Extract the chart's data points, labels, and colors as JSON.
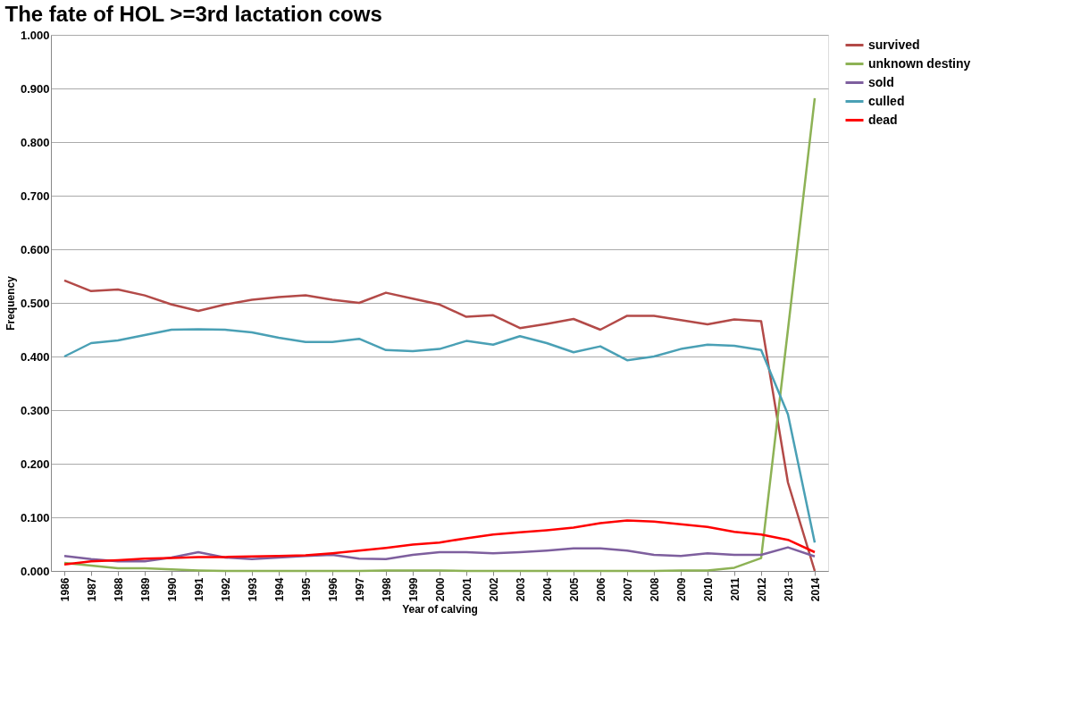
{
  "chart_data": {
    "type": "line",
    "title": "The fate of HOL >=3rd lactation cows",
    "xlabel": "Year of calving",
    "ylabel": "Frequency",
    "categories": [
      "1986",
      "1987",
      "1988",
      "1989",
      "1990",
      "1991",
      "1992",
      "1993",
      "1994",
      "1995",
      "1996",
      "1997",
      "1998",
      "1999",
      "2000",
      "2001",
      "2002",
      "2003",
      "2004",
      "2005",
      "2006",
      "2007",
      "2008",
      "2009",
      "2010",
      "2011",
      "2012",
      "2013",
      "2014"
    ],
    "series": [
      {
        "name": "survived",
        "color": "#b34a48",
        "values": [
          0.542,
          0.522,
          0.525,
          0.514,
          0.497,
          0.485,
          0.497,
          0.506,
          0.511,
          0.514,
          0.506,
          0.5,
          0.519,
          0.508,
          0.497,
          0.474,
          0.477,
          0.453,
          0.461,
          0.47,
          0.45,
          0.476,
          0.476,
          0.468,
          0.46,
          0.469,
          0.466,
          0.165,
          0.0
        ]
      },
      {
        "name": "unknown destiny",
        "color": "#8db255",
        "values": [
          0.015,
          0.01,
          0.005,
          0.005,
          0.003,
          0.001,
          0.0,
          0.0,
          0.0,
          0.0,
          0.0,
          0.0,
          0.001,
          0.001,
          0.001,
          0.0,
          0.0,
          0.0,
          0.0,
          0.0,
          0.0,
          0.0,
          0.0,
          0.001,
          0.001,
          0.006,
          0.024,
          0.45,
          0.882
        ]
      },
      {
        "name": "sold",
        "color": "#7e5f9e",
        "values": [
          0.028,
          0.022,
          0.018,
          0.018,
          0.025,
          0.035,
          0.025,
          0.022,
          0.025,
          0.028,
          0.03,
          0.023,
          0.022,
          0.03,
          0.035,
          0.035,
          0.033,
          0.035,
          0.038,
          0.042,
          0.042,
          0.038,
          0.03,
          0.028,
          0.033,
          0.03,
          0.03,
          0.044,
          0.027
        ]
      },
      {
        "name": "culled",
        "color": "#4aa0b5",
        "values": [
          0.4,
          0.425,
          0.43,
          0.44,
          0.45,
          0.451,
          0.45,
          0.445,
          0.435,
          0.427,
          0.427,
          0.433,
          0.412,
          0.41,
          0.414,
          0.429,
          0.422,
          0.438,
          0.425,
          0.408,
          0.419,
          0.393,
          0.4,
          0.414,
          0.422,
          0.42,
          0.412,
          0.292,
          0.053
        ]
      },
      {
        "name": "dead",
        "color": "#ff0000",
        "values": [
          0.012,
          0.018,
          0.02,
          0.023,
          0.024,
          0.026,
          0.026,
          0.027,
          0.028,
          0.029,
          0.033,
          0.038,
          0.043,
          0.049,
          0.053,
          0.061,
          0.068,
          0.072,
          0.076,
          0.081,
          0.089,
          0.094,
          0.092,
          0.087,
          0.082,
          0.073,
          0.068,
          0.058,
          0.035
        ]
      }
    ],
    "ylim": [
      0,
      1
    ],
    "yticks": [
      {
        "value": 0,
        "label": "0.000"
      },
      {
        "value": 0.1,
        "label": "0.100"
      },
      {
        "value": 0.2,
        "label": "0.200"
      },
      {
        "value": 0.3,
        "label": "0.300"
      },
      {
        "value": 0.4,
        "label": "0.400"
      },
      {
        "value": 0.5,
        "label": "0.500"
      },
      {
        "value": 0.6,
        "label": "0.600"
      },
      {
        "value": 0.7,
        "label": "0.700"
      },
      {
        "value": 0.8,
        "label": "0.800"
      },
      {
        "value": 0.9,
        "label": "0.900"
      },
      {
        "value": 1,
        "label": "1.000"
      }
    ],
    "grid": "y",
    "legend": "right",
    "marker": "none",
    "line_style": "solid"
  }
}
